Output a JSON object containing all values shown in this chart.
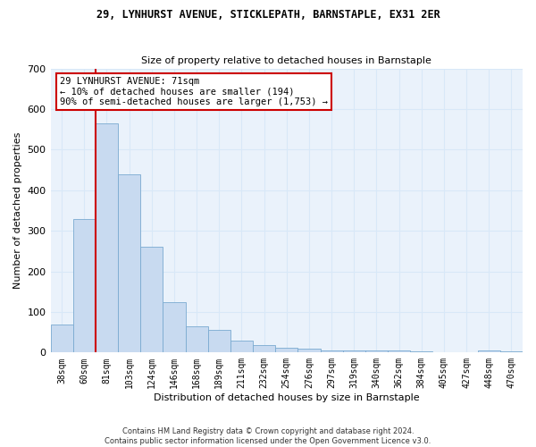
{
  "title1": "29, LYNHURST AVENUE, STICKLEPATH, BARNSTAPLE, EX31 2ER",
  "title2": "Size of property relative to detached houses in Barnstaple",
  "xlabel": "Distribution of detached houses by size in Barnstaple",
  "ylabel": "Number of detached properties",
  "bar_color": "#c8daf0",
  "bar_edge_color": "#7aaad0",
  "categories": [
    "38sqm",
    "60sqm",
    "81sqm",
    "103sqm",
    "124sqm",
    "146sqm",
    "168sqm",
    "189sqm",
    "211sqm",
    "232sqm",
    "254sqm",
    "276sqm",
    "297sqm",
    "319sqm",
    "340sqm",
    "362sqm",
    "384sqm",
    "405sqm",
    "427sqm",
    "448sqm",
    "470sqm"
  ],
  "values": [
    70,
    330,
    565,
    440,
    260,
    125,
    65,
    55,
    30,
    18,
    12,
    10,
    6,
    5,
    5,
    5,
    3,
    0,
    0,
    5,
    4
  ],
  "vline_x_idx": 1.5,
  "vline_color": "#cc0000",
  "annotation_text": "29 LYNHURST AVENUE: 71sqm\n← 10% of detached houses are smaller (194)\n90% of semi-detached houses are larger (1,753) →",
  "box_color": "white",
  "box_edge_color": "#cc0000",
  "ylim": [
    0,
    700
  ],
  "yticks": [
    0,
    100,
    200,
    300,
    400,
    500,
    600,
    700
  ],
  "footer": "Contains HM Land Registry data © Crown copyright and database right 2024.\nContains public sector information licensed under the Open Government Licence v3.0.",
  "grid_color": "#d8e8f8",
  "background_color": "#eaf2fb",
  "figsize": [
    6.0,
    5.0
  ],
  "dpi": 100
}
